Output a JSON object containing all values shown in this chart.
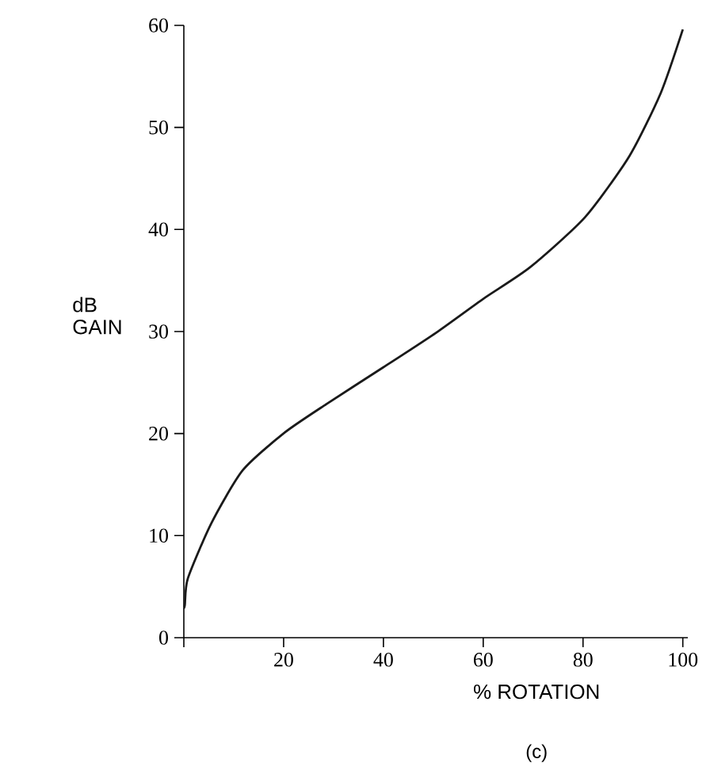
{
  "chart_data": {
    "type": "line",
    "xlabel": "% ROTATION",
    "ylabel": "dB GAIN",
    "annotations": [
      "(c)"
    ],
    "x": [
      0,
      0.2,
      0.8,
      5.5,
      11.8,
      20.2,
      28.6,
      40,
      50.6,
      60,
      69.4,
      80.4,
      89.3,
      95.6,
      100
    ],
    "series": [
      {
        "color": "#1a1a1a",
        "values": [
          2.9,
          3.2,
          5.8,
          11.2,
          16.4,
          20.1,
          22.9,
          26.5,
          29.9,
          33.2,
          36.3,
          41.2,
          47.2,
          53.4,
          59.6
        ]
      }
    ],
    "xlim": [
      0,
      101
    ],
    "ylim": [
      0,
      60
    ],
    "xticks": [
      {
        "value": 0,
        "label": null
      },
      20,
      40,
      60,
      80,
      100
    ],
    "yticks": [
      0,
      10,
      20,
      30,
      40,
      50,
      60
    ],
    "grid": false,
    "marker": "none",
    "line_style": "solid"
  }
}
